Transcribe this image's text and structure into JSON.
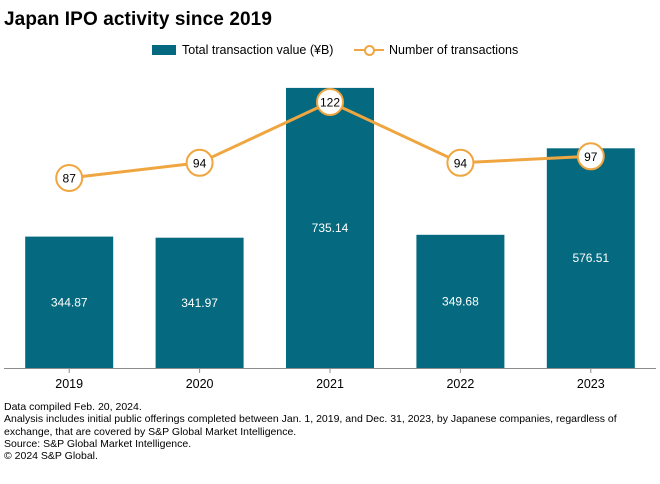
{
  "chart_data": {
    "type": "bar",
    "title": "Japan IPO activity since 2019",
    "categories": [
      "2019",
      "2020",
      "2021",
      "2022",
      "2023"
    ],
    "series": [
      {
        "name": "Total transaction value (¥B)",
        "kind": "bar",
        "axis": "left",
        "values": [
          344.87,
          341.97,
          735.14,
          349.68,
          576.51
        ],
        "labels": [
          "344.87",
          "341.97",
          "735.14",
          "349.68",
          "576.51"
        ]
      },
      {
        "name": "Number of transactions",
        "kind": "line",
        "axis": "right",
        "values": [
          87,
          94,
          122,
          94,
          97
        ],
        "labels": [
          "87",
          "94",
          "122",
          "94",
          "97"
        ]
      }
    ],
    "ylim_left": [
      0,
      750
    ],
    "ylim_right": [
      0,
      150
    ],
    "grid": false,
    "legend_position": "top-center",
    "xlabel": "",
    "ylabel": ""
  },
  "colors": {
    "bar": "#05697f",
    "line": "#f0a640",
    "axis": "#8c8c8c",
    "bar_label": "#ffffff",
    "text": "#000000"
  },
  "footnotes": [
    "Data compiled Feb. 20, 2024.",
    "Analysis includes initial public offerings completed between Jan. 1, 2019, and Dec. 31, 2023, by Japanese companies, regardless of exchange, that are covered by S&P Global Market Intelligence.",
    "Source: S&P Global Market Intelligence.",
    "© 2024 S&P Global."
  ]
}
